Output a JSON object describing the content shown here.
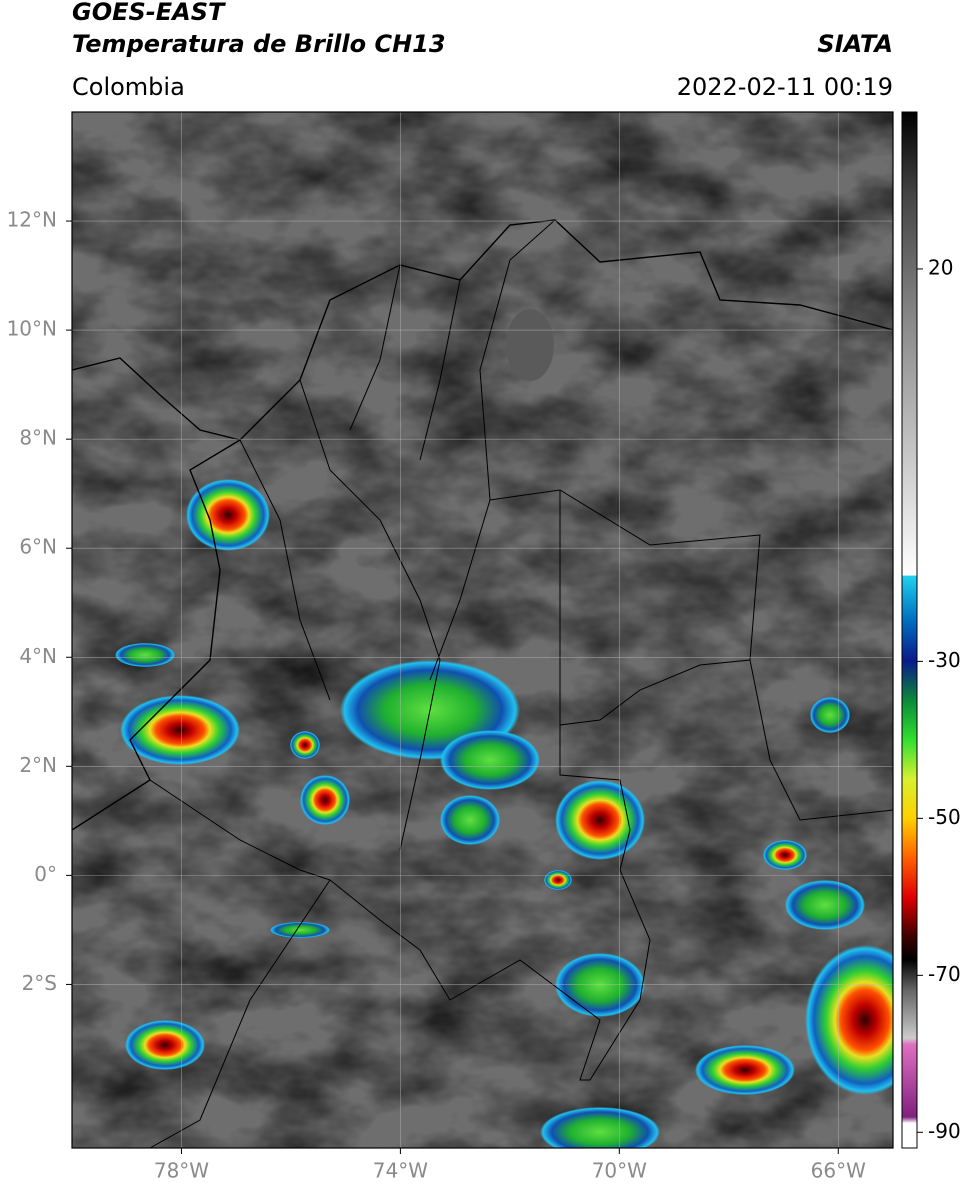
{
  "header": {
    "title": "GOES-EAST",
    "subtitle": "Temperatura de Brillo CH13",
    "region": "Colombia",
    "source": "SIATA",
    "datetime": "2022-02-11 00:19"
  },
  "map": {
    "lon_lim": [
      -80,
      -65
    ],
    "lat_lim": [
      -5,
      14
    ],
    "lat_ticks": [
      {
        "value": 12,
        "label": "12°N"
      },
      {
        "value": 10,
        "label": "10°N"
      },
      {
        "value": 8,
        "label": "8°N"
      },
      {
        "value": 6,
        "label": "6°N"
      },
      {
        "value": 4,
        "label": "4°N"
      },
      {
        "value": 2,
        "label": "2°N"
      },
      {
        "value": 0,
        "label": "0°"
      },
      {
        "value": -2,
        "label": "2°S"
      }
    ],
    "lon_ticks": [
      {
        "value": -78,
        "label": "78°W"
      },
      {
        "value": -74,
        "label": "74°W"
      },
      {
        "value": -70,
        "label": "70°W"
      },
      {
        "value": -66,
        "label": "66°W"
      }
    ],
    "grid": true
  },
  "colorbar": {
    "lim": [
      -92,
      40
    ],
    "ticks": [
      20,
      -30,
      -50,
      -70,
      -90
    ]
  }
}
